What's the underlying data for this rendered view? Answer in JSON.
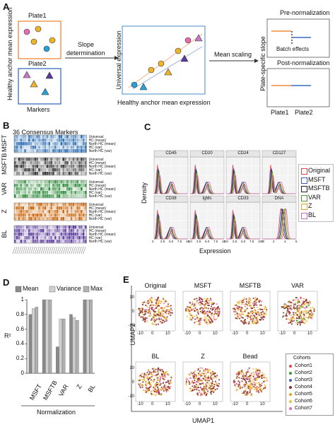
{
  "panels": {
    "A": "A",
    "B": "B",
    "C": "C",
    "D": "D",
    "E": "E"
  },
  "panel_a": {
    "y_label": "Healthy anchor mean expression",
    "plate1": "Plate1",
    "plate2": "Plate2",
    "markers": "Markers",
    "slope_det": [
      "Slope",
      "determination"
    ],
    "universal": "Universal expression",
    "x_label": "Healthy anchor mean expression",
    "mean_scaling": "Mean scaling",
    "pre_norm": "Pre-normalization",
    "batch": "Batch effects",
    "post_norm": "Post-normalization",
    "plate_slope": "Plate-specific slope",
    "plate1b": "Plate1",
    "plate2b": "Plate2"
  },
  "panel_b": {
    "title": "36 Consensus Markers",
    "rows": [
      "Universal",
      "HC (mean)",
      "North HC (mean)",
      "HC (var)",
      "North HC (var)"
    ],
    "groups": [
      {
        "name": "MSFT",
        "color": "#2b6cb0"
      },
      {
        "name": "MSFTB",
        "color": "#333333"
      },
      {
        "name": "VAR",
        "color": "#2e8b3a"
      },
      {
        "name": "Z",
        "color": "#c8640a"
      },
      {
        "name": "BL",
        "color": "#5b3b9a"
      }
    ]
  },
  "panel_c": {
    "y_label": "Density",
    "x_label": "Expression",
    "subplots": [
      "CD45",
      "CD20",
      "CD24",
      "CD127",
      "CD38",
      "IgMs",
      "CD33",
      "DNA"
    ],
    "x_ticks": [
      "0",
      "2.5",
      "5.0",
      "7.5",
      "10.0"
    ],
    "x_ticks_dna": [
      "0",
      "2",
      "4",
      "6"
    ],
    "legend": [
      {
        "name": "Original",
        "color": "#e8434a"
      },
      {
        "name": "MSFT",
        "color": "#3b5cc4"
      },
      {
        "name": "MSFTB",
        "color": "#222222"
      },
      {
        "name": "VAR",
        "color": "#4a9a3a"
      },
      {
        "name": "Z",
        "color": "#e8a020"
      },
      {
        "name": "BL",
        "color": "#c46ac8"
      }
    ]
  },
  "chart_data": {
    "type": "bar",
    "categories": [
      "MSFT",
      "MSFTB",
      "VAR",
      "Z",
      "BL"
    ],
    "series": [
      {
        "name": "Mean",
        "color": "#8a8a8a",
        "values": [
          0.8,
          1.0,
          0.36,
          0.8,
          1.0
        ]
      },
      {
        "name": "Variance",
        "color": "#d0d0d0",
        "values": [
          0.88,
          1.0,
          0.74,
          0.76,
          1.0
        ]
      },
      {
        "name": "Max",
        "color": "#b0b0b0",
        "values": [
          0.9,
          1.0,
          0.74,
          0.72,
          1.0
        ]
      }
    ],
    "title": "",
    "xlabel": "Normalization",
    "ylabel": "R²",
    "ylim": [
      0,
      1
    ],
    "y_ticks": [
      "0",
      "0.2",
      "0.4",
      "0.6",
      "0.8",
      "1"
    ],
    "legend_position": "top"
  },
  "panel_e": {
    "y_label": "UMAP2",
    "x_label": "UMAP1",
    "titles_row1": [
      "Original",
      "MSFT",
      "MSFTB",
      "VAR"
    ],
    "titles_row2": [
      "BL",
      "Z",
      "Bead"
    ],
    "y_ticks": [
      "10",
      "0",
      "-10"
    ],
    "x_ticks": [
      "-10",
      "0",
      "10"
    ],
    "legend_title": "Cohorts",
    "cohorts": [
      {
        "name": "Cohort1",
        "color": "#e8434a"
      },
      {
        "name": "Cohort2",
        "color": "#3a9a3a"
      },
      {
        "name": "Cohort3",
        "color": "#3b5cc4"
      },
      {
        "name": "Cohort4",
        "color": "#8a2a2a"
      },
      {
        "name": "Cohort5",
        "color": "#e8a020"
      },
      {
        "name": "Cohort6",
        "color": "#f0c040"
      },
      {
        "name": "Cohort7",
        "color": "#e86ab0"
      }
    ]
  }
}
